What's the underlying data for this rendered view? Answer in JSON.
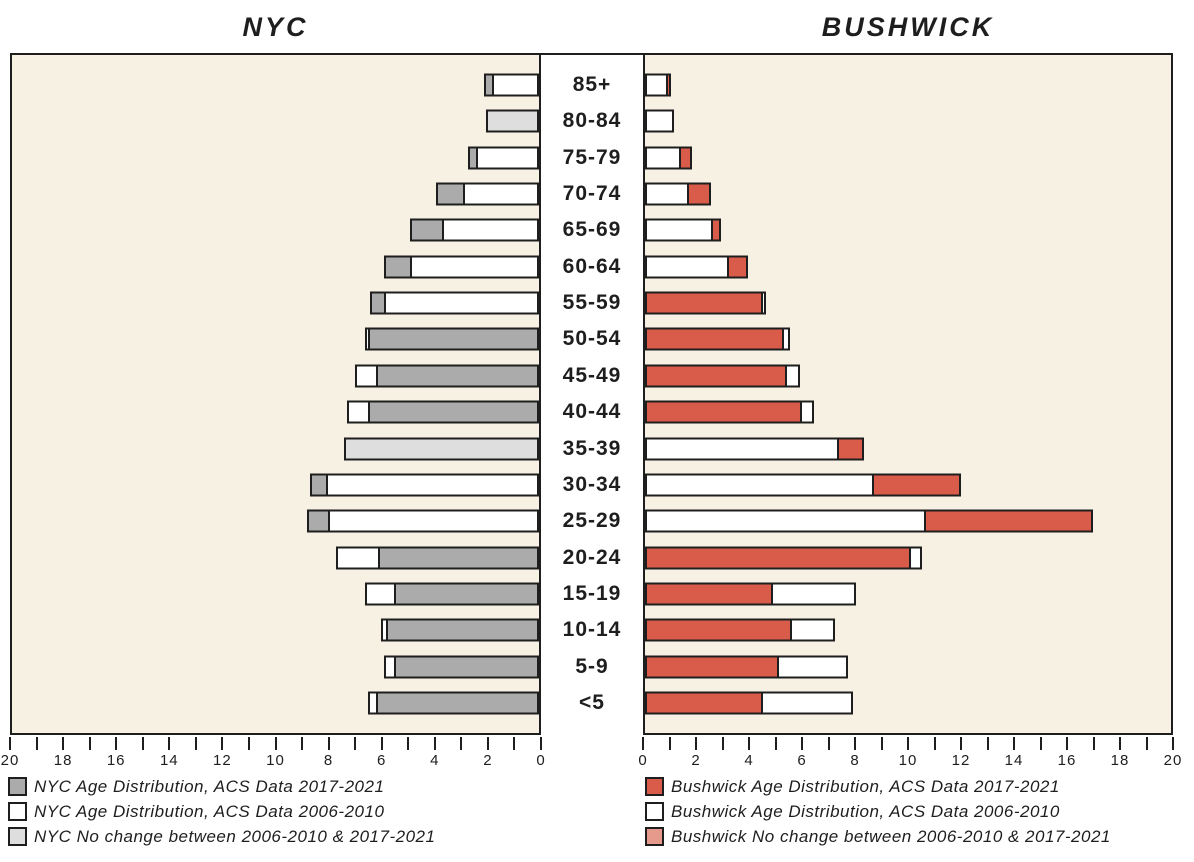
{
  "titles": {
    "left": "NYC",
    "right": "BUSHWICK"
  },
  "colors": {
    "background": "#ffffff",
    "plot_fill": "#f7f1e3",
    "border": "#1e1e1e",
    "nyc_2017": "#ababab",
    "nyc_2006": "#ffffff",
    "nyc_no_change": "#dedede",
    "bushwick_2017": "#d85c49",
    "bushwick_2006": "#ffffff",
    "bushwick_no_change": "#e59a8b"
  },
  "chart_data": {
    "type": "bar",
    "subtype": "population-pyramid",
    "title": "NYC vs BUSHWICK age distribution",
    "grid": false,
    "legend_position": "bottom",
    "categories": [
      "85+",
      "80-84",
      "75-79",
      "70-74",
      "65-69",
      "60-64",
      "55-59",
      "50-54",
      "45-49",
      "40-44",
      "35-39",
      "30-34",
      "25-29",
      "20-24",
      "15-19",
      "10-14",
      "5-9",
      "<5"
    ],
    "axis": {
      "min": 0,
      "max": 20,
      "tick_step": 1,
      "label_step": 2,
      "left_tick_labels": [
        "20",
        "18",
        "16",
        "14",
        "12",
        "10",
        "8",
        "6",
        "4",
        "2",
        "0"
      ],
      "right_tick_labels": [
        "0",
        "2",
        "4",
        "6",
        "8",
        "10",
        "12",
        "14",
        "16",
        "18",
        "20"
      ]
    },
    "series": [
      {
        "name": "NYC Age Distribution, ACS Data 2017-2021",
        "color_key": "nyc_2017",
        "values": [
          2.1,
          null,
          2.7,
          3.9,
          4.9,
          5.9,
          6.4,
          6.5,
          6.2,
          6.5,
          null,
          8.7,
          8.8,
          6.1,
          5.5,
          5.8,
          5.5,
          6.2
        ]
      },
      {
        "name": "NYC Age Distribution, ACS Data 2006-2010",
        "color_key": "nyc_2006",
        "values": [
          1.8,
          null,
          2.4,
          2.9,
          3.7,
          4.9,
          5.9,
          6.6,
          7.0,
          7.3,
          null,
          8.1,
          8.0,
          7.7,
          6.6,
          6.0,
          5.9,
          6.5
        ]
      },
      {
        "name": "NYC No change between 2006-2010 & 2017-2021",
        "color_key": "nyc_no_change",
        "values": [
          null,
          2.0,
          null,
          null,
          null,
          null,
          null,
          null,
          null,
          null,
          7.4,
          null,
          null,
          null,
          null,
          null,
          null,
          null
        ]
      },
      {
        "name": "Bushwick Age Distribution, ACS Data 2017-2021",
        "color_key": "bushwick_2017",
        "values": [
          1.0,
          1.1,
          1.8,
          2.5,
          2.9,
          3.9,
          4.4,
          5.2,
          5.3,
          5.9,
          8.3,
          12.0,
          17.0,
          10.0,
          4.8,
          5.5,
          5.0,
          4.4
        ]
      },
      {
        "name": "Bushwick Age Distribution, ACS Data 2006-2010",
        "color_key": "bushwick_2006",
        "values": [
          0.8,
          1.1,
          1.3,
          1.6,
          2.5,
          3.1,
          4.6,
          5.5,
          5.9,
          6.4,
          7.3,
          8.6,
          10.6,
          10.5,
          8.0,
          7.2,
          7.7,
          7.9
        ]
      },
      {
        "name": "Bushwick No change between 2006-2010 & 2017-2021",
        "color_key": "bushwick_no_change",
        "values": [
          null,
          null,
          null,
          null,
          null,
          null,
          null,
          null,
          null,
          null,
          null,
          null,
          null,
          null,
          null,
          null,
          null,
          null
        ]
      }
    ]
  },
  "legend_left": [
    {
      "label": "NYC Age Distribution, ACS Data 2017-2021",
      "color_key": "nyc_2017"
    },
    {
      "label": "NYC Age Distribution, ACS Data 2006-2010",
      "color_key": "nyc_2006"
    },
    {
      "label": "NYC No change between 2006-2010 & 2017-2021",
      "color_key": "nyc_no_change"
    }
  ],
  "legend_right": [
    {
      "label": "Bushwick Age Distribution, ACS Data 2017-2021",
      "color_key": "bushwick_2017"
    },
    {
      "label": "Bushwick Age Distribution, ACS Data 2006-2010",
      "color_key": "bushwick_2006"
    },
    {
      "label": "Bushwick No change between 2006-2010 & 2017-2021",
      "color_key": "bushwick_no_change"
    }
  ]
}
